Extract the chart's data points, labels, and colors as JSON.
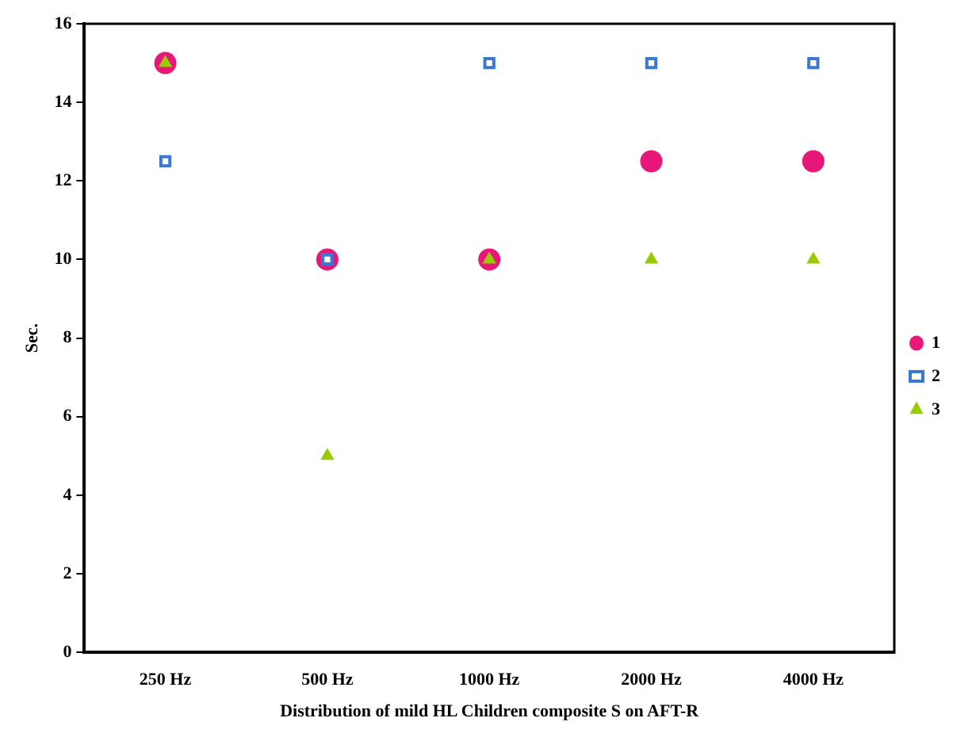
{
  "chart_data": {
    "type": "scatter",
    "xlabel": "Distribution of mild HL Children composite S on AFT-R",
    "ylabel": "Sec.",
    "categories": [
      "250 Hz",
      "500 Hz",
      "1000 Hz",
      "2000 Hz",
      "4000 Hz"
    ],
    "ylim": [
      0,
      16
    ],
    "yticks": [
      0,
      2,
      4,
      6,
      8,
      10,
      12,
      14,
      16
    ],
    "grid": false,
    "legend": "right",
    "series": [
      {
        "name": "1",
        "color": "#e8187a",
        "marker": "circle",
        "values": [
          15,
          10,
          10,
          12.5,
          12.5
        ]
      },
      {
        "name": "2",
        "color": "#3a78d4",
        "marker": "square",
        "values": [
          12.5,
          10,
          15,
          15,
          15
        ]
      },
      {
        "name": "3",
        "color": "#99cc00",
        "marker": "triangle",
        "values": [
          15,
          5,
          10,
          10,
          10
        ]
      }
    ]
  }
}
